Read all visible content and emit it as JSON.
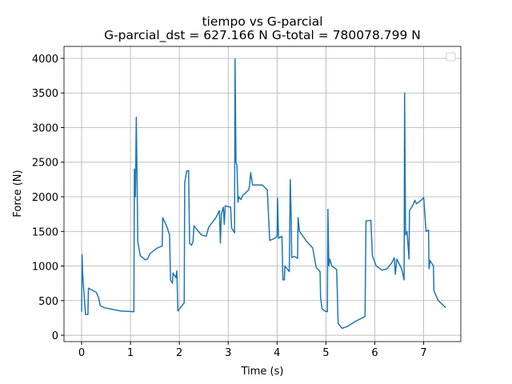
{
  "chart_data": {
    "type": "line",
    "title": "tiempo vs G-parcial",
    "subtitle": "G-parcial_dst = 627.166 N G-total = 780078.799 N",
    "xlabel": "Time (s)",
    "ylabel": "Force (N)",
    "xlim": [
      -0.36,
      7.76
    ],
    "ylim": [
      -92,
      4173
    ],
    "xticks": [
      0,
      1,
      2,
      3,
      4,
      5,
      6,
      7
    ],
    "yticks": [
      0,
      500,
      1000,
      1500,
      2000,
      2500,
      3000,
      3500,
      4000
    ],
    "grid": true,
    "legend": "upper right",
    "series": [
      {
        "color": "#1f77b4",
        "x": [
          0,
          0.01,
          0.02,
          0.08,
          0.13,
          0.14,
          0.3,
          0.35,
          0.38,
          0.45,
          0.8,
          1.07,
          1.08,
          1.1,
          1.12,
          1.15,
          1.2,
          1.3,
          1.35,
          1.4,
          1.55,
          1.65,
          1.66,
          1.75,
          1.8,
          1.82,
          1.86,
          1.87,
          1.93,
          1.95,
          1.97,
          2.1,
          2.11,
          2.15,
          2.19,
          2.21,
          2.25,
          2.28,
          2.3,
          2.45,
          2.55,
          2.6,
          2.75,
          2.82,
          2.84,
          2.86,
          2.9,
          2.92,
          2.94,
          3.05,
          3.07,
          3.13,
          3.14,
          3.16,
          3.18,
          3.2,
          3.22,
          3.26,
          3.3,
          3.42,
          3.44,
          3.46,
          3.5,
          3.7,
          3.8,
          3.85,
          3.95,
          4.0,
          4.01,
          4.03,
          4.1,
          4.12,
          4.15,
          4.16,
          4.25,
          4.27,
          4.29,
          4.3,
          4.35,
          4.42,
          4.43,
          4.46,
          4.6,
          4.73,
          4.8,
          4.88,
          4.89,
          4.92,
          4.98,
          5.03,
          5.04,
          5.06,
          5.08,
          5.12,
          5.22,
          5.25,
          5.33,
          5.45,
          5.6,
          5.8,
          5.82,
          5.92,
          5.95,
          6.03,
          6.15,
          6.25,
          6.35,
          6.4,
          6.42,
          6.45,
          6.55,
          6.6,
          6.61,
          6.63,
          6.66,
          6.7,
          6.71,
          6.78,
          6.82,
          6.85,
          6.95,
          7.0,
          7.05,
          7.1,
          7.11,
          7.13,
          7.2,
          7.21,
          7.3,
          7.45
        ],
        "values": [
          340,
          1165,
          900,
          300,
          300,
          680,
          620,
          540,
          430,
          400,
          350,
          340,
          2400,
          2000,
          3150,
          1350,
          1150,
          1090,
          1100,
          1180,
          1260,
          1290,
          1700,
          1560,
          1450,
          800,
          750,
          900,
          830,
          930,
          350,
          470,
          2200,
          2370,
          2380,
          1330,
          1300,
          1350,
          1580,
          1450,
          1430,
          1560,
          1700,
          1800,
          1330,
          1750,
          1850,
          1600,
          1870,
          1850,
          1550,
          1480,
          3990,
          2500,
          2450,
          1920,
          2000,
          1960,
          2020,
          2100,
          2180,
          2350,
          2170,
          2170,
          2100,
          1370,
          1400,
          1430,
          1980,
          1400,
          1430,
          800,
          800,
          1000,
          920,
          2250,
          1700,
          1120,
          1140,
          1110,
          1700,
          1500,
          1360,
          1260,
          980,
          920,
          560,
          380,
          350,
          340,
          1820,
          1000,
          1100,
          1000,
          950,
          170,
          100,
          130,
          200,
          270,
          1650,
          1660,
          1150,
          1000,
          940,
          960,
          1050,
          1120,
          880,
          1100,
          960,
          800,
          3500,
          1450,
          1500,
          1100,
          1800,
          1880,
          1950,
          1900,
          1950,
          1990,
          1500,
          1520,
          960,
          1080,
          1000,
          640,
          500,
          400
        ]
      }
    ]
  }
}
